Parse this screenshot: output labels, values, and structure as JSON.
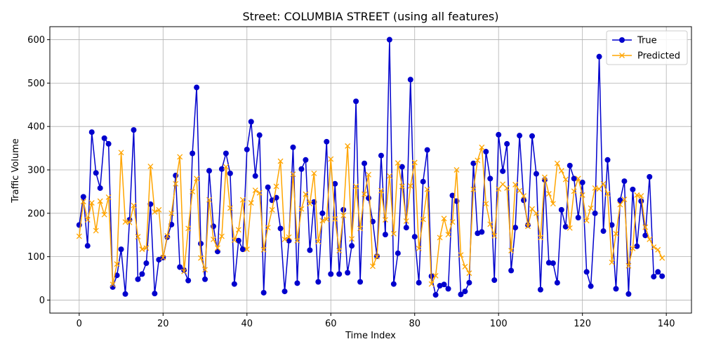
{
  "chart_data": {
    "type": "line",
    "title": "Street: COLUMBIA STREET (using all features)",
    "xlabel": "Time Index",
    "ylabel": "Traffic Volume",
    "xlim": [
      -7,
      146
    ],
    "ylim": [
      -30,
      630
    ],
    "xticks": [
      0,
      20,
      40,
      60,
      80,
      100,
      120,
      140
    ],
    "yticks": [
      0,
      100,
      200,
      300,
      400,
      500,
      600
    ],
    "grid": true,
    "legend_position": "top-right",
    "series": [
      {
        "name": "True",
        "color": "#0000cd",
        "marker": "circle",
        "values": [
          173,
          238,
          125,
          387,
          293,
          258,
          373,
          360,
          30,
          57,
          117,
          14,
          185,
          392,
          48,
          60,
          85,
          221,
          15,
          93,
          98,
          145,
          174,
          287,
          76,
          69,
          45,
          338,
          490,
          130,
          48,
          298,
          170,
          112,
          302,
          338,
          292,
          37,
          137,
          117,
          347,
          411,
          286,
          380,
          17,
          260,
          230,
          236,
          165,
          20,
          137,
          352,
          39,
          302,
          323,
          115,
          226,
          42,
          200,
          365,
          60,
          268,
          60,
          208,
          63,
          125,
          458,
          42,
          315,
          235,
          181,
          101,
          333,
          151,
          600,
          37,
          108,
          307,
          167,
          508,
          146,
          40,
          273,
          346,
          55,
          12,
          33,
          36,
          26,
          241,
          228,
          13,
          20,
          40,
          315,
          154,
          157,
          342,
          280,
          46,
          381,
          297,
          360,
          68,
          167,
          379,
          230,
          173,
          378,
          291,
          24,
          277,
          86,
          85,
          40,
          208,
          169,
          310,
          280,
          190,
          271,
          65,
          32,
          200,
          561,
          159,
          323,
          173,
          26,
          230,
          274,
          14,
          255,
          124,
          228,
          149,
          284,
          54,
          65,
          55
        ]
      },
      {
        "name": "Predicted",
        "color": "#ffa500",
        "marker": "x",
        "values": [
          147,
          227,
          185,
          224,
          160,
          228,
          197,
          237,
          36,
          83,
          340,
          180,
          179,
          218,
          146,
          117,
          120,
          308,
          203,
          208,
          98,
          148,
          200,
          268,
          330,
          66,
          165,
          250,
          280,
          97,
          70,
          231,
          140,
          120,
          147,
          307,
          212,
          138,
          162,
          231,
          117,
          224,
          253,
          247,
          116,
          167,
          208,
          262,
          320,
          140,
          145,
          290,
          137,
          210,
          244,
          222,
          292,
          135,
          183,
          186,
          325,
          187,
          114,
          195,
          355,
          141,
          262,
          165,
          244,
          289,
          78,
          100,
          252,
          185,
          286,
          153,
          316,
          262,
          182,
          263,
          317,
          119,
          186,
          255,
          37,
          56,
          144,
          188,
          151,
          180,
          300,
          104,
          77,
          62,
          255,
          322,
          352,
          222,
          175,
          148,
          256,
          267,
          258,
          114,
          266,
          252,
          240,
          170,
          210,
          200,
          144,
          283,
          245,
          222,
          315,
          298,
          278,
          166,
          251,
          280,
          242,
          183,
          212,
          258,
          256,
          268,
          245,
          87,
          153,
          220,
          232,
          79,
          119,
          242,
          240,
          168,
          140,
          122,
          116,
          97
        ]
      }
    ]
  }
}
